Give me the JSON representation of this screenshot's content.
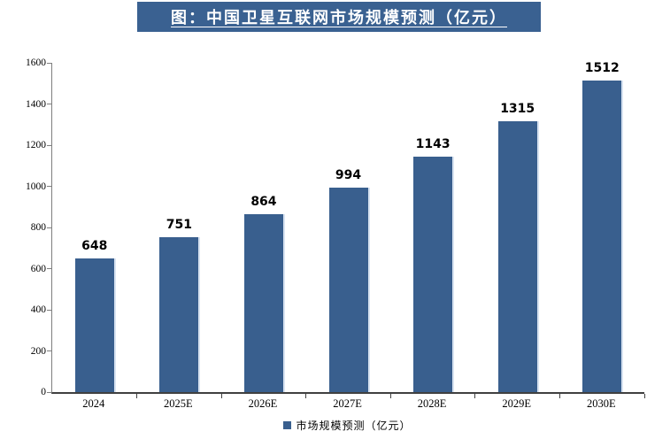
{
  "banner": {
    "text": "图：中国卫星互联网市场规模预测（亿元）",
    "bg_color": "#3A6191",
    "text_color": "#FFFFFF"
  },
  "legend": {
    "label": "市场规模预测（亿元）",
    "marker_color": "#395F8E"
  },
  "colors": {
    "bar": "#395F8E",
    "x_axis": "#404040",
    "y_axis": "#7F7F7F",
    "label_text": "#000000"
  },
  "chart_data": {
    "type": "bar",
    "title": "图：中国卫星互联网市场规模预测（亿元）",
    "categories": [
      "2024",
      "2025E",
      "2026E",
      "2027E",
      "2028E",
      "2029E",
      "2030E"
    ],
    "values": [
      648,
      751,
      864,
      994,
      1143,
      1315,
      1512
    ],
    "series_name": "市场规模预测（亿元）",
    "xlabel": "",
    "ylabel": "",
    "ylim": [
      0,
      1600
    ],
    "yticks": [
      0,
      200,
      400,
      600,
      800,
      1000,
      1200,
      1400,
      1600
    ],
    "grid": false,
    "legend_position": "bottom",
    "data_labels": true
  }
}
